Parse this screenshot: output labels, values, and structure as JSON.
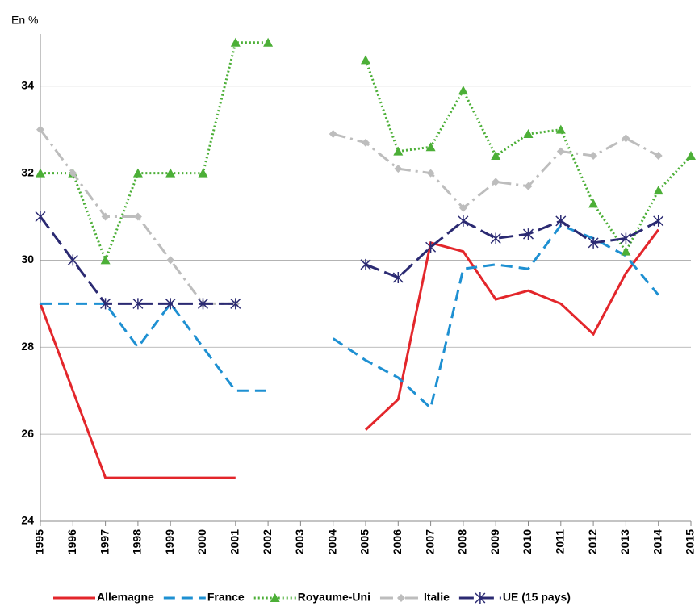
{
  "chart_data": {
    "type": "line",
    "y_label": "En %",
    "categories": [
      "1995",
      "1996",
      "1997",
      "1998",
      "1999",
      "2000",
      "2001",
      "2002",
      "2003",
      "2004",
      "2005",
      "2006",
      "2007",
      "2008",
      "2009",
      "2010",
      "2011",
      "2012",
      "2013",
      "2014",
      "2015"
    ],
    "series": [
      {
        "name": "Allemagne",
        "color": "#e3262b",
        "line_style": "solid",
        "marker": "none",
        "values": [
          29,
          27,
          25,
          25,
          25,
          25,
          25,
          null,
          null,
          null,
          26.1,
          26.8,
          30.4,
          30.2,
          29.1,
          29.3,
          29.0,
          28.3,
          29.7,
          30.7,
          null
        ]
      },
      {
        "name": "France",
        "color": "#1e90d2",
        "line_style": "dashed",
        "marker": "none",
        "values": [
          29,
          29,
          29,
          28,
          29,
          28,
          27,
          27,
          null,
          28.2,
          27.7,
          27.3,
          26.6,
          29.8,
          29.9,
          29.8,
          30.8,
          30.5,
          30.1,
          29.2,
          null
        ]
      },
      {
        "name": "Royaume-Uni",
        "color": "#4caf37",
        "line_style": "dotted",
        "marker": "triangle",
        "values": [
          32,
          32,
          30,
          32,
          32,
          32,
          35,
          35,
          null,
          null,
          34.6,
          32.5,
          32.6,
          33.9,
          32.4,
          32.9,
          33.0,
          31.3,
          30.2,
          31.6,
          32.4
        ]
      },
      {
        "name": "Italie",
        "color": "#bdbdbd",
        "line_style": "dashdot",
        "marker": "diamond",
        "values": [
          33,
          32,
          31,
          31,
          30,
          29,
          29,
          null,
          null,
          32.9,
          32.7,
          32.1,
          32.0,
          31.2,
          31.8,
          31.7,
          32.5,
          32.4,
          32.8,
          32.4,
          null
        ]
      },
      {
        "name": "UE (15 pays)",
        "color": "#2b2a72",
        "line_style": "longdash",
        "marker": "asterisk",
        "values": [
          31,
          30,
          29,
          29,
          29,
          29,
          29,
          null,
          null,
          null,
          29.9,
          29.6,
          30.3,
          30.9,
          30.5,
          30.6,
          30.9,
          30.4,
          30.5,
          30.9,
          null
        ]
      }
    ],
    "ylim": [
      24,
      35.2
    ],
    "yticks": [
      24,
      26,
      28,
      30,
      32,
      34
    ],
    "grid": true,
    "legend": "bottom"
  }
}
